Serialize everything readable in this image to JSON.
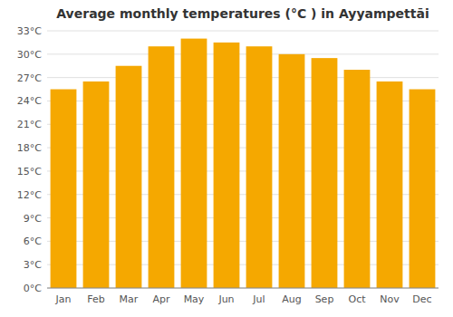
{
  "chart_data": {
    "type": "bar",
    "title": "Average monthly temperatures (°C ) in Ayyampettāi",
    "categories": [
      "Jan",
      "Feb",
      "Mar",
      "Apr",
      "May",
      "Jun",
      "Jul",
      "Aug",
      "Sep",
      "Oct",
      "Nov",
      "Dec"
    ],
    "values": [
      25.5,
      26.5,
      28.5,
      31.0,
      32.0,
      31.5,
      31.0,
      30.0,
      29.5,
      28.0,
      26.5,
      25.5
    ],
    "color": "#F5A800",
    "ylim": [
      0,
      33
    ],
    "yticks": [
      {
        "value": 0,
        "label": "0°C"
      },
      {
        "value": 3,
        "label": "3°C"
      },
      {
        "value": 6,
        "label": "6°C"
      },
      {
        "value": 9,
        "label": "9°C"
      },
      {
        "value": 12,
        "label": "12°C"
      },
      {
        "value": 15,
        "label": "15°C"
      },
      {
        "value": 18,
        "label": "18°C"
      },
      {
        "value": 21,
        "label": "21°C"
      },
      {
        "value": 24,
        "label": "24°C"
      },
      {
        "value": 27,
        "label": "27°C"
      },
      {
        "value": 30,
        "label": "30°C"
      },
      {
        "value": 33,
        "label": "33°C"
      }
    ],
    "grid": true
  }
}
